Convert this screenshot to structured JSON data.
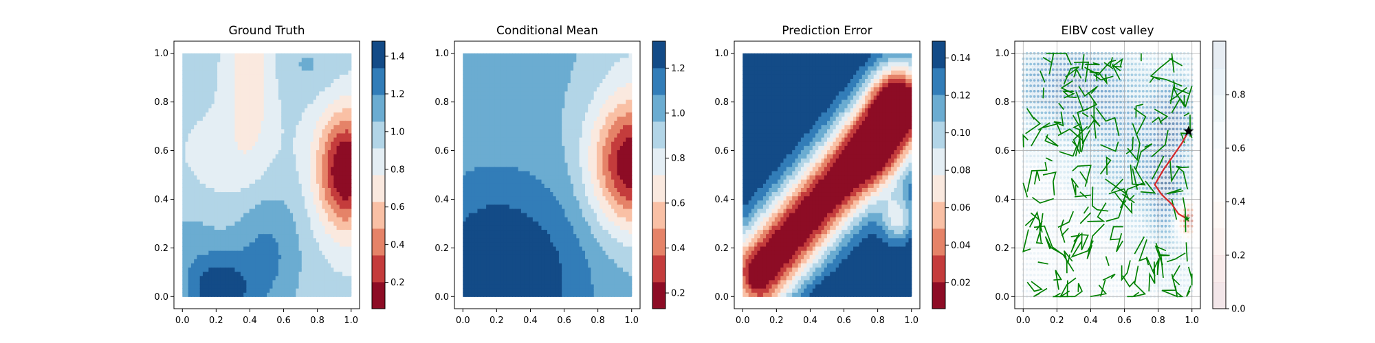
{
  "chart_data": [
    {
      "type": "heatmap",
      "title": "Ground Truth",
      "xlim": [
        -0.05,
        1.05
      ],
      "ylim": [
        -0.05,
        1.05
      ],
      "x_ticks": [
        "0.0",
        "0.2",
        "0.4",
        "0.6",
        "0.8",
        "1.0"
      ],
      "y_ticks": [
        "0.0",
        "0.2",
        "0.4",
        "0.6",
        "0.8",
        "1.0"
      ],
      "colormap": "RdBu",
      "colorbar": {
        "vmin": 0.06,
        "vmax": 1.48,
        "levels": 10,
        "ticks": [
          "0.2",
          "0.4",
          "0.6",
          "0.8",
          "1.0",
          "1.2",
          "1.4"
        ],
        "tick_values": [
          0.2,
          0.4,
          0.6,
          0.8,
          1.0,
          1.2,
          1.4
        ]
      },
      "field": {
        "base": 0.95,
        "components": [
          {
            "type": "gauss",
            "x": 0.97,
            "y": 0.52,
            "sx": 0.12,
            "sy": 0.17,
            "amp": -0.95
          },
          {
            "type": "gauss",
            "x": 0.4,
            "y": 0.92,
            "sx": 0.09,
            "sy": 0.22,
            "amp": -0.3
          },
          {
            "type": "gauss",
            "x": 0.3,
            "y": 0.55,
            "sx": 0.2,
            "sy": 0.15,
            "amp": -0.12
          },
          {
            "type": "gauss",
            "x": 0.22,
            "y": 0.02,
            "sx": 0.13,
            "sy": 0.1,
            "amp": 0.48
          },
          {
            "type": "gauss",
            "x": 0.5,
            "y": 0.18,
            "sx": 0.15,
            "sy": 0.2,
            "amp": 0.28
          },
          {
            "type": "gauss",
            "x": 0.05,
            "y": 0.2,
            "sx": 0.15,
            "sy": 0.15,
            "amp": 0.15
          },
          {
            "type": "gauss",
            "x": 0.75,
            "y": 0.95,
            "sx": 0.12,
            "sy": 0.08,
            "amp": 0.12
          }
        ]
      }
    },
    {
      "type": "heatmap",
      "title": "Conditional Mean",
      "xlim": [
        -0.05,
        1.05
      ],
      "ylim": [
        -0.05,
        1.05
      ],
      "x_ticks": [
        "0.0",
        "0.2",
        "0.4",
        "0.6",
        "0.8",
        "1.0"
      ],
      "y_ticks": [
        "0.0",
        "0.2",
        "0.4",
        "0.6",
        "0.8",
        "1.0"
      ],
      "colormap": "RdBu",
      "colorbar": {
        "vmin": 0.13,
        "vmax": 1.32,
        "levels": 10,
        "ticks": [
          "0.2",
          "0.4",
          "0.6",
          "0.8",
          "1.0",
          "1.2"
        ],
        "tick_values": [
          0.2,
          0.4,
          0.6,
          0.8,
          1.0,
          1.2
        ]
      },
      "field": {
        "base": 0.98,
        "components": [
          {
            "type": "gauss",
            "x": 1.0,
            "y": 0.55,
            "sx": 0.17,
            "sy": 0.19,
            "amp": -0.85
          },
          {
            "type": "gauss",
            "x": 0.15,
            "y": 0.05,
            "sx": 0.28,
            "sy": 0.3,
            "amp": 0.36
          },
          {
            "type": "gauss",
            "x": 0.55,
            "y": 0.1,
            "sx": 0.25,
            "sy": 0.25,
            "amp": 0.12
          },
          {
            "type": "gauss",
            "x": 1.0,
            "y": 1.0,
            "sx": 0.15,
            "sy": 0.15,
            "amp": -0.08
          }
        ]
      }
    },
    {
      "type": "heatmap",
      "title": "Prediction Error",
      "xlim": [
        -0.05,
        1.05
      ],
      "ylim": [
        -0.05,
        1.05
      ],
      "x_ticks": [
        "0.0",
        "0.2",
        "0.4",
        "0.6",
        "0.8",
        "1.0"
      ],
      "y_ticks": [
        "0.0",
        "0.2",
        "0.4",
        "0.6",
        "0.8",
        "1.0"
      ],
      "colormap": "RdBu",
      "colorbar": {
        "vmin": 0.006,
        "vmax": 0.149,
        "levels": 10,
        "ticks": [
          "0.02",
          "0.04",
          "0.06",
          "0.08",
          "0.10",
          "0.12",
          "0.14"
        ],
        "tick_values": [
          0.02,
          0.04,
          0.06,
          0.08,
          0.1,
          0.12,
          0.14
        ]
      },
      "field": {
        "base": 0.152,
        "components": [
          {
            "type": "ridge",
            "x1": 0.1,
            "y1": 0.1,
            "x2": 0.95,
            "y2": 0.78,
            "s": 0.13,
            "amp": -0.152
          },
          {
            "type": "gauss",
            "x": 0.82,
            "y": 0.6,
            "sx": 0.14,
            "sy": 0.14,
            "amp": -0.035
          },
          {
            "type": "gauss",
            "x": 0.92,
            "y": 0.32,
            "sx": 0.07,
            "sy": 0.07,
            "amp": -0.06
          },
          {
            "type": "gauss",
            "x": 0.85,
            "y": 0.82,
            "sx": 0.08,
            "sy": 0.08,
            "amp": -0.04
          },
          {
            "type": "gauss",
            "x": 0.75,
            "y": 0.0,
            "sx": 0.22,
            "sy": 0.05,
            "amp": 0.02
          }
        ]
      }
    },
    {
      "type": "heatmap",
      "title": "EIBV cost valley",
      "xlim": [
        -0.05,
        1.05
      ],
      "ylim": [
        -0.05,
        1.05
      ],
      "x_ticks": [
        "0.0",
        "0.2",
        "0.4",
        "0.6",
        "0.8",
        "1.0"
      ],
      "y_ticks": [
        "0.0",
        "0.2",
        "0.4",
        "0.6",
        "0.8",
        "1.0"
      ],
      "grid": true,
      "colormap": "RdBu",
      "alpha": 0.1,
      "colorbar": {
        "vmin": 0.0,
        "vmax": 1.0,
        "levels": 10,
        "ticks": [
          "0.0",
          "0.2",
          "0.4",
          "0.6",
          "0.8"
        ],
        "tick_values": [
          0.0,
          0.2,
          0.4,
          0.6,
          0.8
        ]
      },
      "field": {
        "base": 0.6,
        "components": [
          {
            "type": "gauss",
            "x": 0.25,
            "y": 0.88,
            "sx": 0.25,
            "sy": 0.14,
            "amp": 0.3
          },
          {
            "type": "gauss",
            "x": 0.6,
            "y": 0.6,
            "sx": 0.2,
            "sy": 0.2,
            "amp": 0.2
          },
          {
            "type": "gauss",
            "x": 0.9,
            "y": 0.75,
            "sx": 0.1,
            "sy": 0.12,
            "amp": 0.25
          },
          {
            "type": "gauss",
            "x": 0.97,
            "y": 0.32,
            "sx": 0.05,
            "sy": 0.05,
            "amp": -0.55
          },
          {
            "type": "gauss",
            "x": 0.85,
            "y": 0.42,
            "sx": 0.08,
            "sy": 0.15,
            "amp": 0.3
          },
          {
            "type": "gauss",
            "x": 0.3,
            "y": 0.2,
            "sx": 0.3,
            "sy": 0.3,
            "amp": -0.05
          }
        ]
      },
      "overlay_colors": {
        "trees": "#008000",
        "path": "#d62728",
        "start_marker": "#000000",
        "goal_marker": "#008000"
      },
      "path": [
        [
          0.98,
          0.68
        ],
        [
          0.94,
          0.63
        ],
        [
          0.88,
          0.57
        ],
        [
          0.83,
          0.52
        ],
        [
          0.78,
          0.46
        ],
        [
          0.82,
          0.42
        ],
        [
          0.88,
          0.38
        ],
        [
          0.92,
          0.34
        ],
        [
          0.97,
          0.32
        ]
      ],
      "start": [
        0.98,
        0.68
      ],
      "goal": [
        0.97,
        0.32
      ]
    }
  ]
}
